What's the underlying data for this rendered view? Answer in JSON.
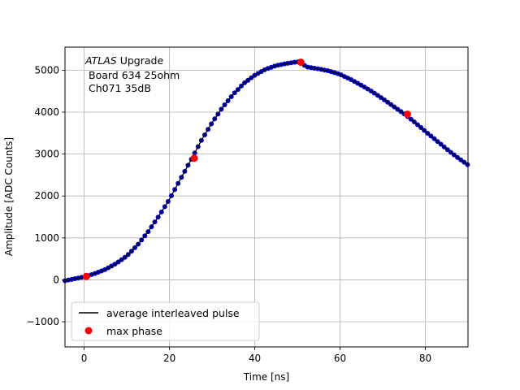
{
  "chart_data": {
    "type": "scatter",
    "xlabel": "Time [ns]",
    "ylabel": "Amplitude [ADC Counts]",
    "xlim": [
      -4.5,
      90
    ],
    "ylim": [
      -1600,
      5550
    ],
    "xticks": [
      0,
      20,
      40,
      60,
      80
    ],
    "yticks": [
      -1000,
      0,
      1000,
      2000,
      3000,
      4000,
      5000
    ],
    "xtick_labels": [
      "0",
      "20",
      "40",
      "60",
      "80"
    ],
    "ytick_labels": [
      "−1000",
      "0",
      "1000",
      "2000",
      "3000",
      "4000",
      "5000"
    ],
    "grid": true,
    "legend_position": "lower-left",
    "annotation": {
      "line1_italic": "ATLAS",
      "line1_rest": " Upgrade",
      "line2": "Board 634 25ohm",
      "line3": "Ch071 35dB"
    },
    "series": [
      {
        "name": "average interleaved pulse",
        "kind": "line",
        "color": "#000000",
        "x": [
          -4.5,
          0,
          2.5,
          5,
          7.5,
          10,
          12.5,
          15,
          17.5,
          20,
          22.5,
          25,
          27.5,
          30,
          32.5,
          35,
          37.5,
          40,
          42.5,
          45,
          47.5,
          50,
          51,
          52,
          55,
          57.5,
          60,
          62.5,
          65,
          67.5,
          70,
          72.5,
          75,
          77.5,
          80,
          82.5,
          85,
          87.5,
          90
        ],
        "y": [
          -20,
          70,
          150,
          250,
          390,
          570,
          830,
          1150,
          1520,
          1920,
          2390,
          2850,
          3330,
          3750,
          4120,
          4430,
          4690,
          4880,
          5020,
          5110,
          5160,
          5200,
          5180,
          5080,
          5030,
          4980,
          4900,
          4780,
          4640,
          4490,
          4320,
          4140,
          3960,
          3760,
          3540,
          3330,
          3120,
          2920,
          2740
        ]
      },
      {
        "name": "max phase",
        "kind": "points",
        "color": "#ff0000",
        "x": [
          0.5,
          25.8,
          50.8,
          75.8
        ],
        "y": [
          80,
          2900,
          5190,
          3950
        ]
      }
    ],
    "sample_points_color": "#0000cc",
    "line_color": "#000000",
    "grid_color": "#b0b0b0"
  }
}
